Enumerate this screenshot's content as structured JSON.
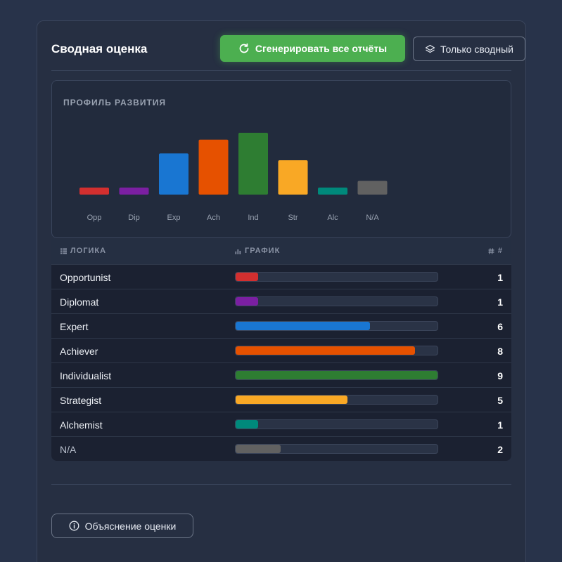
{
  "header": {
    "title": "Сводная оценка",
    "generate_label": "Сгенерировать все отчёты",
    "summary_only_label": "Только сводный"
  },
  "chart": {
    "title": "ПРОФИЛЬ РАЗВИТИЯ"
  },
  "chart_data": {
    "type": "bar",
    "categories": [
      "Opp",
      "Dip",
      "Exp",
      "Ach",
      "Ind",
      "Str",
      "Alc",
      "N/A"
    ],
    "values": [
      1,
      1,
      6,
      8,
      9,
      5,
      1,
      2
    ],
    "colors": [
      "#d32f2f",
      "#7b1fa2",
      "#1976d2",
      "#e65100",
      "#2e7d32",
      "#f9a825",
      "#00897b",
      "#616161"
    ],
    "ylim": [
      0,
      9
    ],
    "grid": false,
    "legend": "none"
  },
  "table": {
    "col_logic": "ЛОГИКА",
    "col_graph": "ГРАФИК",
    "col_count": "#",
    "max_value": 9,
    "rows": [
      {
        "name": "Opportunist",
        "value": 1,
        "count": "1",
        "color": "#d32f2f"
      },
      {
        "name": "Diplomat",
        "value": 1,
        "count": "1",
        "color": "#7b1fa2"
      },
      {
        "name": "Expert",
        "value": 6,
        "count": "6",
        "color": "#1976d2"
      },
      {
        "name": "Achiever",
        "value": 8,
        "count": "8",
        "color": "#e65100"
      },
      {
        "name": "Individualist",
        "value": 9,
        "count": "9",
        "color": "#2e7d32"
      },
      {
        "name": "Strategist",
        "value": 5,
        "count": "5",
        "color": "#f9a825"
      },
      {
        "name": "Alchemist",
        "value": 1,
        "count": "1",
        "color": "#00897b"
      },
      {
        "name": "N/A",
        "value": 2,
        "count": "2",
        "color": "#616161"
      }
    ]
  },
  "footer": {
    "explain_label": "Объяснение оценки"
  },
  "icons": {
    "generate": "refresh-icon",
    "summary_only": "layers-icon",
    "logic": "list-icon",
    "graph": "bar-chart-icon",
    "count": "hash-icon",
    "explain": "info-icon"
  }
}
